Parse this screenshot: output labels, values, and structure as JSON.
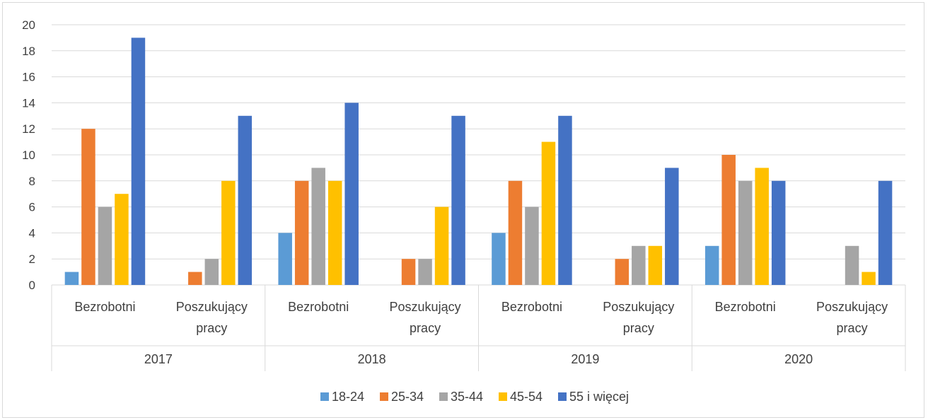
{
  "chart_data": {
    "type": "bar",
    "groups": [
      "2017",
      "2018",
      "2019",
      "2020"
    ],
    "subcategories": [
      [
        "Bezrobotni"
      ],
      [
        "Poszukujący",
        "pracy"
      ]
    ],
    "categories": [
      "2017 Bezrobotni",
      "2017 Poszukujący pracy",
      "2018 Bezrobotni",
      "2018 Poszukujący pracy",
      "2019 Bezrobotni",
      "2019 Poszukujący pracy",
      "2020 Bezrobotni",
      "2020 Poszukujący pracy"
    ],
    "series": [
      {
        "name": "18-24",
        "color": "#5B9BD5",
        "values": [
          1,
          0,
          4,
          0,
          4,
          0,
          3,
          0
        ]
      },
      {
        "name": "25-34",
        "color": "#ED7D31",
        "values": [
          12,
          1,
          8,
          2,
          8,
          2,
          10,
          0
        ]
      },
      {
        "name": "35-44",
        "color": "#A5A5A5",
        "values": [
          6,
          2,
          9,
          2,
          6,
          3,
          8,
          3
        ]
      },
      {
        "name": "45-54",
        "color": "#FFC000",
        "values": [
          7,
          8,
          8,
          6,
          11,
          3,
          9,
          1
        ]
      },
      {
        "name": "55 i więcej",
        "color": "#4472C4",
        "values": [
          19,
          13,
          14,
          13,
          13,
          9,
          8,
          8
        ]
      }
    ],
    "ylim": [
      0,
      20
    ],
    "yticks": [
      "0",
      "2",
      "4",
      "6",
      "8",
      "10",
      "12",
      "14",
      "16",
      "18",
      "20"
    ],
    "title": "",
    "xlabel": "",
    "ylabel": "",
    "grid": true,
    "legend": "bottom"
  }
}
